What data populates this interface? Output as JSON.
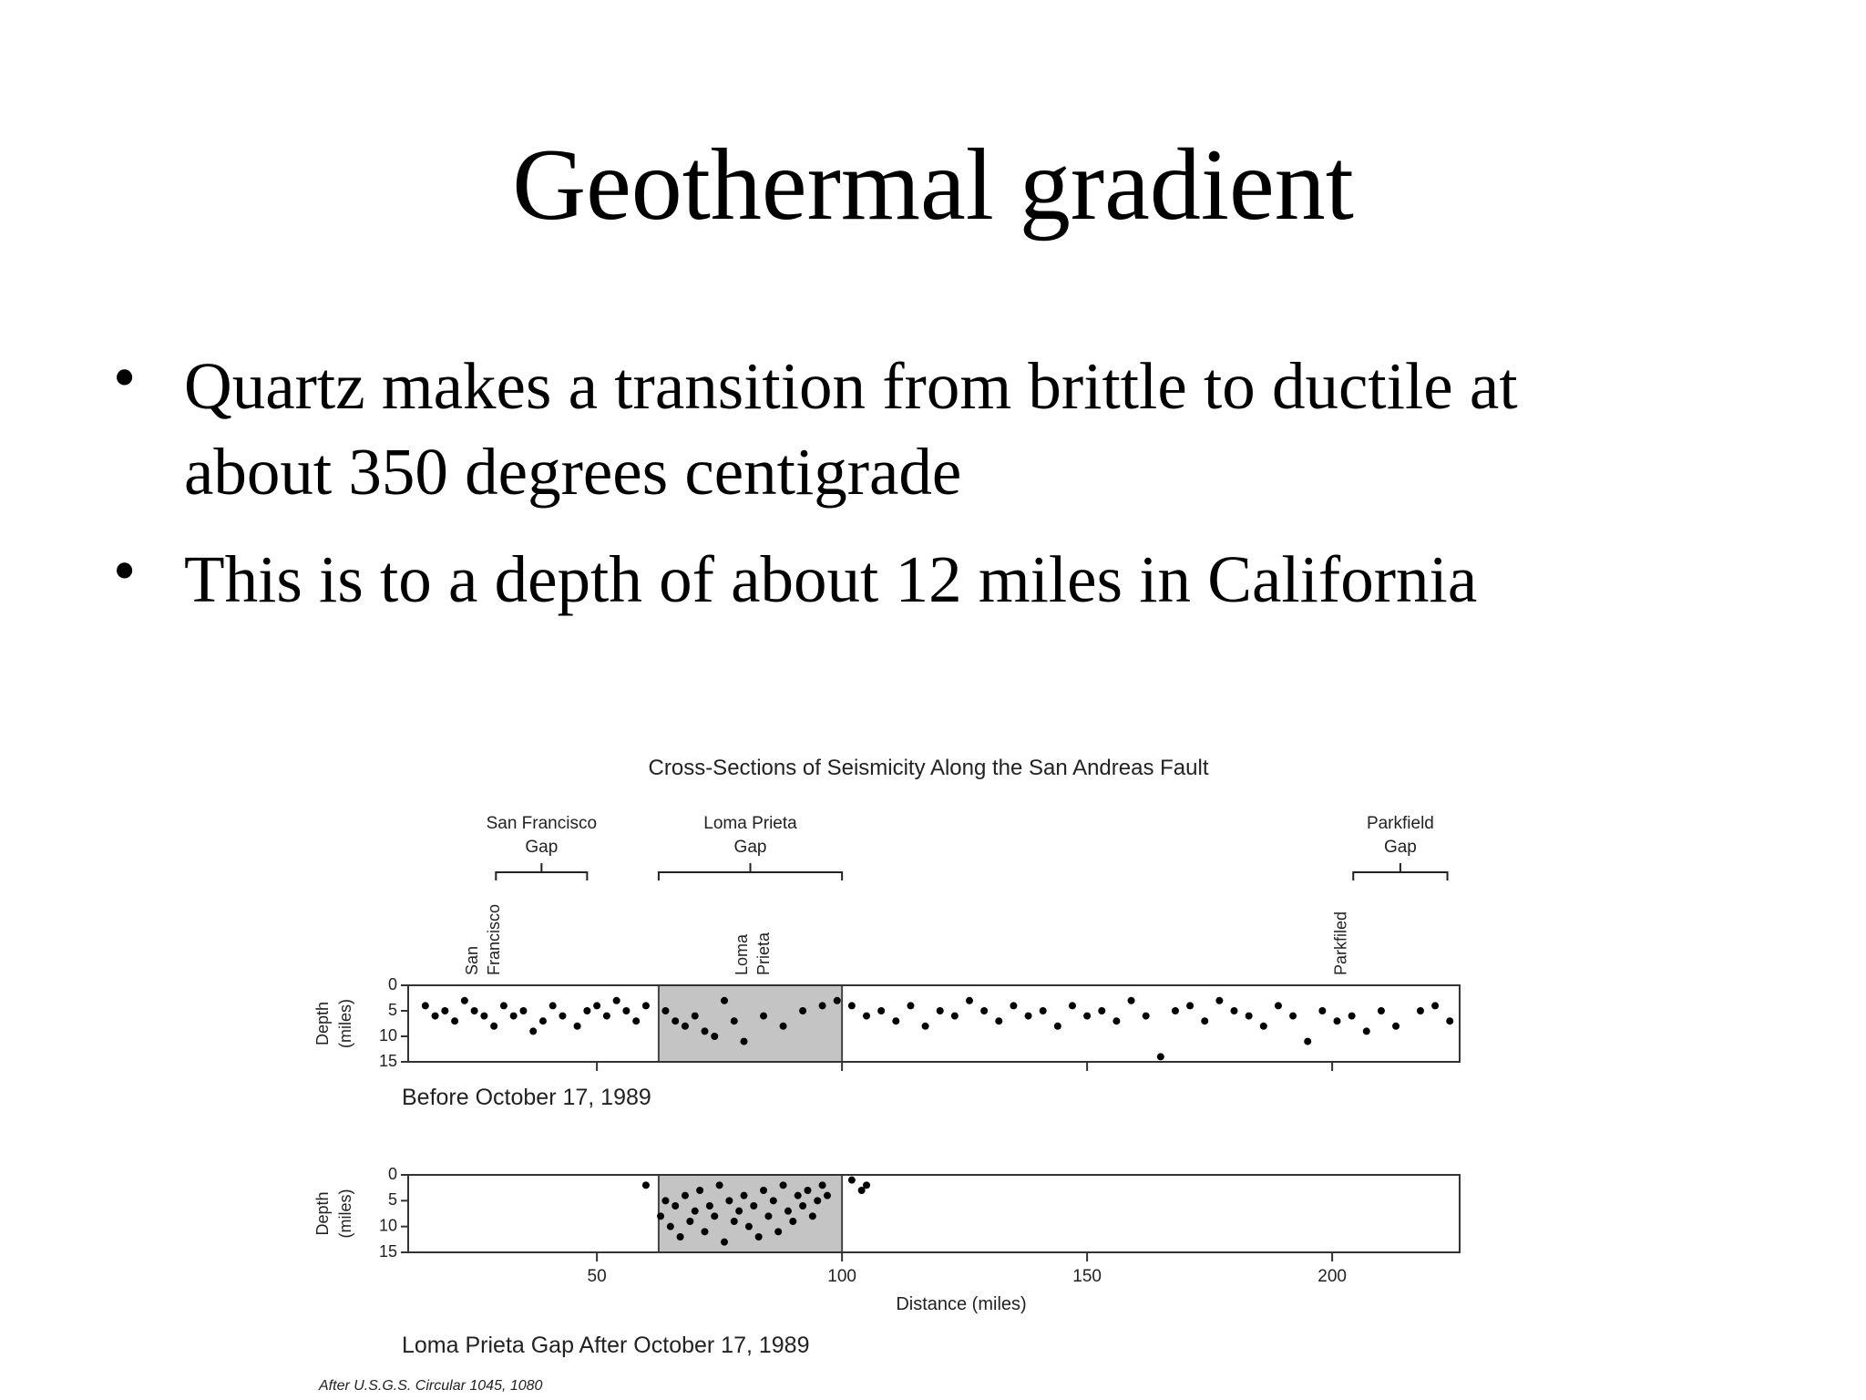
{
  "title": "Geothermal gradient",
  "bullets": [
    "Quartz makes a transition from brittle to ductile at",
    "about 350 degrees centigrade",
    "This is to a depth of about 12 miles in California"
  ],
  "figure": {
    "title": "Cross-Sections of Seismicity Along the San Andreas Fault",
    "gaps": [
      {
        "label_lines": [
          "San Francisco",
          "Gap"
        ],
        "start": 29.4,
        "end": 48
      },
      {
        "label_lines": [
          "Loma Prieta",
          "Gap"
        ],
        "start": 62.6,
        "end": 100
      },
      {
        "label_lines": [
          "Parkfield",
          "Gap"
        ],
        "start": 204.3,
        "end": 223.5
      }
    ],
    "sites": [
      {
        "lines": [
          "San",
          "Francisco"
        ],
        "x": 27
      },
      {
        "lines": [
          "Loma",
          "Prieta"
        ],
        "x": 82
      },
      {
        "lines": [
          "Parkfiled"
        ],
        "x": 202
      }
    ],
    "shaded": [
      62.6,
      100
    ],
    "y_label": [
      "Depth",
      "(miles)"
    ],
    "x_label": "Distance (miles)",
    "source": "After U.S.G.S. Circular 1045, 1080"
  },
  "chart_data": [
    {
      "type": "scatter",
      "caption": "Before October 17, 1989",
      "xlim": [
        11.5,
        226
      ],
      "ylim": [
        0,
        15
      ],
      "xticks": [
        50,
        100,
        150,
        200
      ],
      "yticks": [
        0,
        5,
        10,
        15
      ],
      "color": "#000000",
      "x": [
        15,
        17,
        19,
        21,
        23,
        25,
        27,
        29,
        31,
        33,
        35,
        37,
        39,
        41,
        43,
        46,
        48,
        50,
        52,
        54,
        56,
        58,
        60,
        64,
        66,
        68,
        70,
        72,
        74,
        76,
        78,
        80,
        84,
        88,
        92,
        96,
        99,
        102,
        105,
        108,
        111,
        114,
        117,
        120,
        123,
        126,
        129,
        132,
        135,
        138,
        141,
        144,
        147,
        150,
        153,
        156,
        159,
        162,
        165,
        168,
        171,
        174,
        177,
        180,
        183,
        186,
        189,
        192,
        195,
        198,
        201,
        204,
        207,
        210,
        213,
        218,
        221,
        224
      ],
      "y": [
        4,
        6,
        5,
        7,
        3,
        5,
        6,
        8,
        4,
        6,
        5,
        9,
        7,
        4,
        6,
        8,
        5,
        4,
        6,
        3,
        5,
        7,
        4,
        5,
        7,
        8,
        6,
        9,
        10,
        3,
        7,
        11,
        6,
        8,
        5,
        4,
        3,
        4,
        6,
        5,
        7,
        4,
        8,
        5,
        6,
        3,
        5,
        7,
        4,
        6,
        5,
        8,
        4,
        6,
        5,
        7,
        3,
        6,
        14,
        5,
        4,
        7,
        3,
        5,
        6,
        8,
        4,
        6,
        11,
        5,
        7,
        6,
        9,
        5,
        8,
        5,
        4,
        7
      ]
    },
    {
      "type": "scatter",
      "caption": "Loma Prieta Gap After October 17, 1989",
      "xlim": [
        11.5,
        226
      ],
      "ylim": [
        0,
        15
      ],
      "xticks": [
        50,
        100,
        150,
        200
      ],
      "yticks": [
        0,
        5,
        10,
        15
      ],
      "color": "#000000",
      "x": [
        60,
        63,
        64,
        65,
        66,
        67,
        68,
        69,
        70,
        71,
        72,
        73,
        74,
        75,
        76,
        77,
        78,
        79,
        80,
        81,
        82,
        83,
        84,
        85,
        86,
        87,
        88,
        89,
        90,
        91,
        92,
        93,
        94,
        95,
        96,
        97,
        102,
        104,
        105
      ],
      "y": [
        2,
        8,
        5,
        10,
        6,
        12,
        4,
        9,
        7,
        3,
        11,
        6,
        8,
        2,
        13,
        5,
        9,
        7,
        4,
        10,
        6,
        12,
        3,
        8,
        5,
        11,
        2,
        7,
        9,
        4,
        6,
        3,
        8,
        5,
        2,
        4,
        1,
        3,
        2
      ]
    }
  ]
}
